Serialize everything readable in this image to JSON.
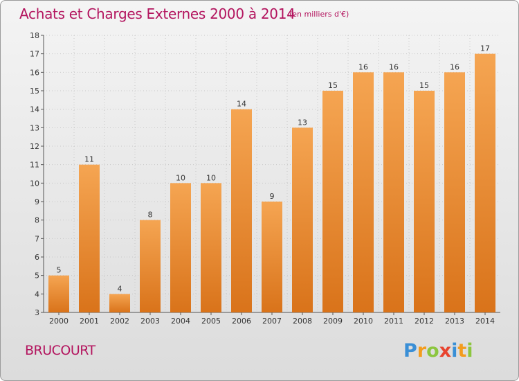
{
  "header": {
    "title": "Achats et Charges Externes 2000 à 2014",
    "unit": "(en milliers d'€)"
  },
  "footer": {
    "commune": "BRUCOURT",
    "logo_text": "Proxiti"
  },
  "colors": {
    "title": "#b3145e",
    "bar_top": "#f5a552",
    "bar_bottom": "#d9731a",
    "grid": "#c8c8c8"
  },
  "chart_data": {
    "type": "bar",
    "title": "Achats et Charges Externes 2000 à 2014",
    "subtitle": "(en milliers d'€)",
    "xlabel": "",
    "ylabel": "",
    "ylim": [
      3,
      18
    ],
    "yticks": [
      3,
      4,
      5,
      6,
      7,
      8,
      9,
      10,
      11,
      12,
      13,
      14,
      15,
      16,
      17,
      18
    ],
    "grid": true,
    "categories": [
      "2000",
      "2001",
      "2002",
      "2003",
      "2004",
      "2005",
      "2006",
      "2007",
      "2008",
      "2009",
      "2010",
      "2011",
      "2012",
      "2013",
      "2014"
    ],
    "values": [
      5,
      11,
      4,
      8,
      10,
      10,
      14,
      9,
      13,
      15,
      16,
      16,
      15,
      16,
      17
    ]
  }
}
